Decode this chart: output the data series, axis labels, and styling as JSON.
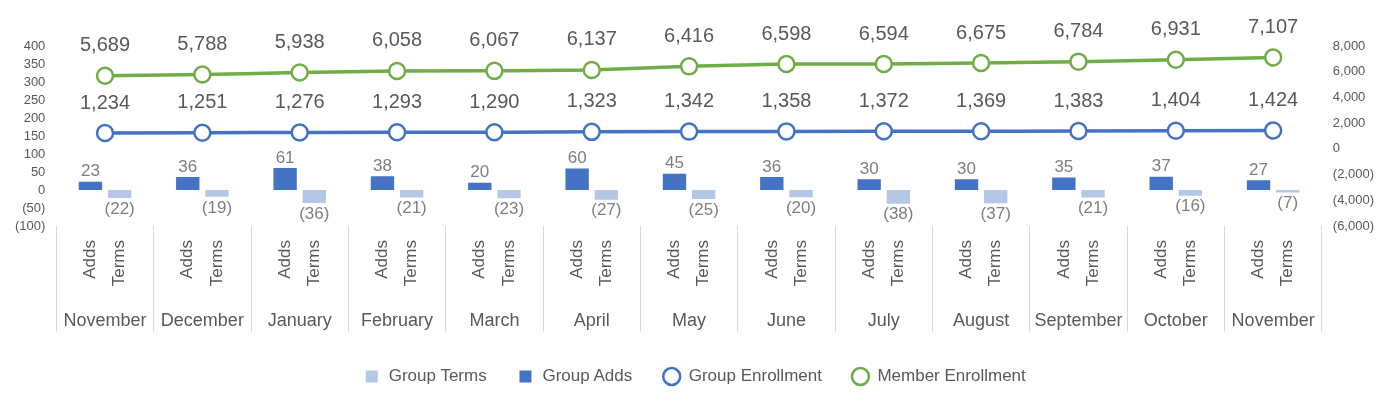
{
  "chart_data": {
    "type": "bar",
    "categories": [
      "November",
      "December",
      "January",
      "February",
      "March",
      "April",
      "May",
      "June",
      "July",
      "August",
      "September",
      "October",
      "November"
    ],
    "annotations": [
      "Adds",
      "Terms"
    ],
    "series": [
      {
        "name": "Group Terms",
        "color": "#b4c7e7",
        "values": [
          -22,
          -19,
          -36,
          -21,
          -23,
          -27,
          -25,
          -20,
          -38,
          -37,
          -21,
          -16,
          -7
        ],
        "value_labels": [
          "(22)",
          "(19)",
          "(36)",
          "(21)",
          "(23)",
          "(27)",
          "(25)",
          "(20)",
          "(38)",
          "(37)",
          "(21)",
          "(16)",
          "(7)"
        ]
      },
      {
        "name": "Group Adds",
        "color": "#4472c4",
        "values": [
          23,
          36,
          61,
          38,
          20,
          60,
          45,
          36,
          30,
          30,
          35,
          37,
          27
        ],
        "value_labels": [
          "23",
          "36",
          "61",
          "38",
          "20",
          "60",
          "45",
          "36",
          "30",
          "30",
          "35",
          "37",
          "27"
        ]
      },
      {
        "name": "Group Enrollment",
        "type": "line",
        "axis": "y2",
        "color": "#4472c4",
        "values": [
          1234,
          1251,
          1276,
          1293,
          1290,
          1323,
          1342,
          1358,
          1372,
          1369,
          1383,
          1404,
          1424
        ],
        "value_labels": [
          "1,234",
          "1,251",
          "1,276",
          "1,293",
          "1,290",
          "1,323",
          "1,342",
          "1,358",
          "1,372",
          "1,369",
          "1,383",
          "1,404",
          "1,424"
        ]
      },
      {
        "name": "Member Enrollment",
        "type": "line",
        "axis": "y2",
        "color": "#70ad47",
        "values": [
          5689,
          5788,
          5938,
          6058,
          6067,
          6137,
          6416,
          6598,
          6594,
          6675,
          6784,
          6931,
          7107
        ],
        "value_labels": [
          "5,689",
          "5,788",
          "5,938",
          "6,058",
          "6,067",
          "6,137",
          "6,416",
          "6,598",
          "6,594",
          "6,675",
          "6,784",
          "6,931",
          "7,107"
        ]
      }
    ],
    "ylim": [
      -100,
      400
    ],
    "yticks": [
      {
        "value": -100,
        "label": "(100)"
      },
      {
        "value": -50,
        "label": "(50)"
      },
      0,
      50,
      100,
      150,
      200,
      250,
      300,
      350,
      400
    ],
    "y2lim": [
      -6000,
      8000
    ],
    "y2ticks": [
      {
        "value": -6000,
        "label": "(6,000)"
      },
      {
        "value": -4000,
        "label": "(4,000)"
      },
      {
        "value": -2000,
        "label": "(2,000)"
      },
      0,
      {
        "value": 2000,
        "label": "2,000"
      },
      {
        "value": 4000,
        "label": "4,000"
      },
      {
        "value": 6000,
        "label": "6,000"
      },
      {
        "value": 8000,
        "label": "8,000"
      }
    ],
    "marker": "circle",
    "line_style": "solid",
    "grid": false,
    "legend": "bottom"
  }
}
